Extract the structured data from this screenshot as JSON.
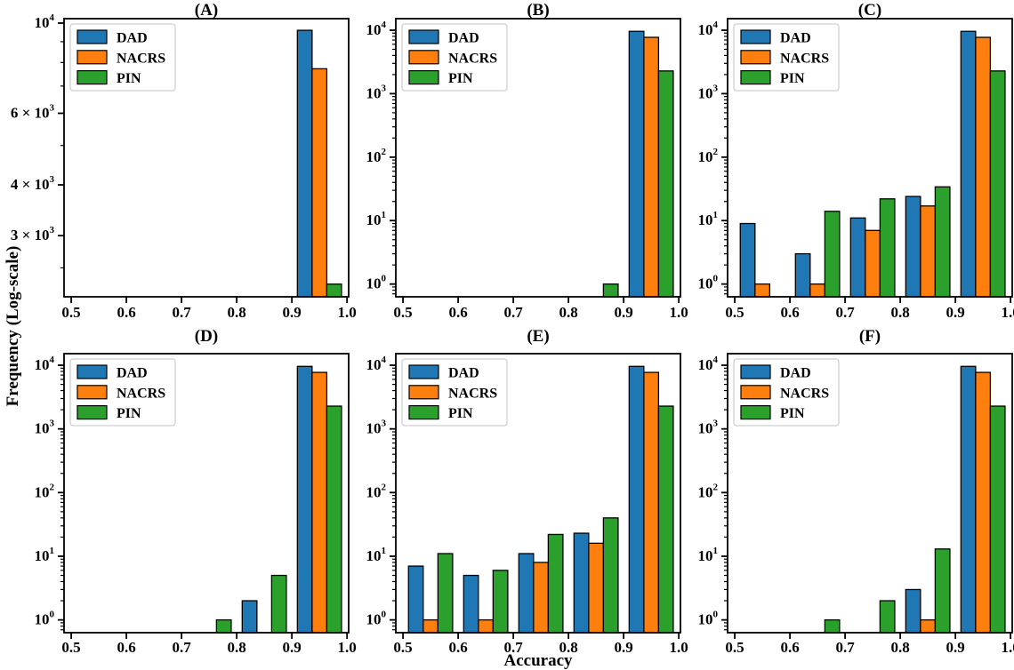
{
  "figure": {
    "ylabel": "Frequency (Log-scale)",
    "xlabel": "Accuracy",
    "legend_labels": [
      "DAD",
      "NACRS",
      "PIN"
    ],
    "colors": {
      "DAD": "#1f77b4",
      "NACRS": "#ff7f0e",
      "PIN": "#2ca02c"
    },
    "bar_edge_color": "#000000",
    "xlim": [
      0.487,
      1.003
    ],
    "xtick_values": [
      0.5,
      0.6,
      0.7,
      0.8,
      0.9,
      1.0
    ],
    "xtick_labels": [
      "0.5",
      "0.6",
      "0.7",
      "0.8",
      "0.9",
      "1.0"
    ]
  },
  "chart_data": [
    {
      "type": "bar",
      "title": "(A)",
      "yscale": "log",
      "ylim": [
        2122,
        10254
      ],
      "bin_edges": [
        0.5,
        0.6,
        0.7,
        0.8,
        0.9,
        1.0
      ],
      "yticks": [
        {
          "value": 10000,
          "label": "10^4"
        },
        {
          "value": 6000,
          "label": "6 × 10^3"
        },
        {
          "value": 4000,
          "label": "4 × 10^3"
        },
        {
          "value": 3000,
          "label": "3 × 10^3"
        }
      ],
      "series": [
        {
          "name": "DAD",
          "values": [
            0,
            0,
            0,
            0,
            9600
          ]
        },
        {
          "name": "NACRS",
          "values": [
            0,
            0,
            0,
            0,
            7720
          ]
        },
        {
          "name": "PIN",
          "values": [
            0,
            0,
            0,
            0,
            2280
          ]
        }
      ]
    },
    {
      "type": "bar",
      "title": "(B)",
      "yscale": "log",
      "ylim": [
        0.63,
        15200
      ],
      "bin_edges": [
        0.5,
        0.6,
        0.7,
        0.8,
        0.9,
        1.0
      ],
      "yticks": [
        {
          "value": 10000,
          "label": "10^4"
        },
        {
          "value": 1000,
          "label": "10^3"
        },
        {
          "value": 100,
          "label": "10^2"
        },
        {
          "value": 10,
          "label": "10^1"
        },
        {
          "value": 1,
          "label": "10^0"
        }
      ],
      "series": [
        {
          "name": "DAD",
          "values": [
            0,
            0,
            0,
            0,
            9600
          ]
        },
        {
          "name": "NACRS",
          "values": [
            0,
            0,
            0,
            0,
            7720
          ]
        },
        {
          "name": "PIN",
          "values": [
            0,
            0,
            0,
            1,
            2280
          ]
        }
      ]
    },
    {
      "type": "bar",
      "title": "(C)",
      "yscale": "log",
      "ylim": [
        0.63,
        15200
      ],
      "bin_edges": [
        0.5,
        0.6,
        0.7,
        0.8,
        0.9,
        1.0
      ],
      "yticks": [
        {
          "value": 10000,
          "label": "10^4"
        },
        {
          "value": 1000,
          "label": "10^3"
        },
        {
          "value": 100,
          "label": "10^2"
        },
        {
          "value": 10,
          "label": "10^1"
        },
        {
          "value": 1,
          "label": "10^0"
        }
      ],
      "series": [
        {
          "name": "DAD",
          "values": [
            9,
            3,
            11,
            24,
            9600
          ]
        },
        {
          "name": "NACRS",
          "values": [
            1,
            1,
            7,
            17,
            7720
          ]
        },
        {
          "name": "PIN",
          "values": [
            0,
            14,
            22,
            34,
            2280
          ]
        }
      ]
    },
    {
      "type": "bar",
      "title": "(D)",
      "yscale": "log",
      "ylim": [
        0.63,
        15200
      ],
      "bin_edges": [
        0.5,
        0.6,
        0.7,
        0.8,
        0.9,
        1.0
      ],
      "yticks": [
        {
          "value": 10000,
          "label": "10^4"
        },
        {
          "value": 1000,
          "label": "10^3"
        },
        {
          "value": 100,
          "label": "10^2"
        },
        {
          "value": 10,
          "label": "10^1"
        },
        {
          "value": 1,
          "label": "10^0"
        }
      ],
      "series": [
        {
          "name": "DAD",
          "values": [
            0,
            0,
            0,
            2,
            9600
          ]
        },
        {
          "name": "NACRS",
          "values": [
            0,
            0,
            0,
            0,
            7720
          ]
        },
        {
          "name": "PIN",
          "values": [
            0,
            0,
            1,
            5,
            2280
          ]
        }
      ]
    },
    {
      "type": "bar",
      "title": "(E)",
      "yscale": "log",
      "ylim": [
        0.63,
        15200
      ],
      "bin_edges": [
        0.5,
        0.6,
        0.7,
        0.8,
        0.9,
        1.0
      ],
      "yticks": [
        {
          "value": 10000,
          "label": "10^4"
        },
        {
          "value": 1000,
          "label": "10^3"
        },
        {
          "value": 100,
          "label": "10^2"
        },
        {
          "value": 10,
          "label": "10^1"
        },
        {
          "value": 1,
          "label": "10^0"
        }
      ],
      "series": [
        {
          "name": "DAD",
          "values": [
            7,
            5,
            11,
            23,
            9600
          ]
        },
        {
          "name": "NACRS",
          "values": [
            1,
            1,
            8,
            16,
            7720
          ]
        },
        {
          "name": "PIN",
          "values": [
            11,
            6,
            22,
            40,
            2280
          ]
        }
      ]
    },
    {
      "type": "bar",
      "title": "(F)",
      "yscale": "log",
      "ylim": [
        0.63,
        15200
      ],
      "bin_edges": [
        0.5,
        0.6,
        0.7,
        0.8,
        0.9,
        1.0
      ],
      "yticks": [
        {
          "value": 10000,
          "label": "10^4"
        },
        {
          "value": 1000,
          "label": "10^3"
        },
        {
          "value": 100,
          "label": "10^2"
        },
        {
          "value": 10,
          "label": "10^1"
        },
        {
          "value": 1,
          "label": "10^0"
        }
      ],
      "series": [
        {
          "name": "DAD",
          "values": [
            0,
            0,
            0,
            3,
            9600
          ]
        },
        {
          "name": "NACRS",
          "values": [
            0,
            0,
            0,
            1,
            7720
          ]
        },
        {
          "name": "PIN",
          "values": [
            0,
            1,
            2,
            13,
            2280
          ]
        }
      ]
    }
  ]
}
